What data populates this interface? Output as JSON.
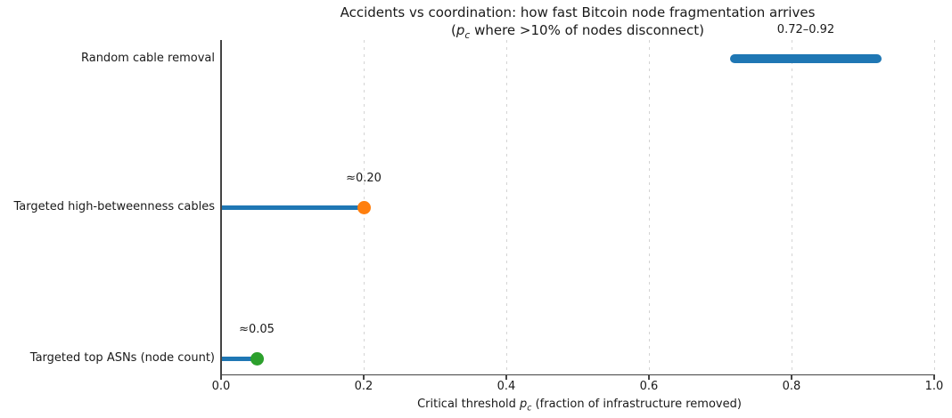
{
  "chart_data": {
    "type": "lollipop",
    "orientation": "horizontal",
    "title": "Accidents vs coordination: how fast Bitcoin node fragmentation arrives",
    "subtitle_parts": {
      "pre": "(",
      "var": "p",
      "sub": "c",
      "rest": " where >10% of nodes disconnect)"
    },
    "xlabel_parts": {
      "prefix": "Critical threshold ",
      "var": "p",
      "sub": "c",
      "suffix": " (fraction of infrastructure removed)"
    },
    "xlim": [
      0.0,
      1.0
    ],
    "xticks": [
      "0.0",
      "0.2",
      "0.4",
      "0.6",
      "0.8",
      "1.0"
    ],
    "xtick_values": [
      0.0,
      0.2,
      0.4,
      0.6,
      0.8,
      1.0
    ],
    "grid": {
      "axis": "x",
      "linestyle": "dashed",
      "color": "#d4d4d4"
    },
    "colors": {
      "stem_blue": "#1f77b4",
      "dot_orange": "#ff7f0e",
      "dot_green": "#2ca02c"
    },
    "rows": [
      {
        "category": "Random cable removal",
        "kind": "range",
        "low": 0.72,
        "high": 0.92,
        "annotation": "0.72–0.92",
        "color": "#1f77b4"
      },
      {
        "category": "Targeted high-betweenness cables",
        "kind": "lollipop",
        "value": 0.2,
        "annotation": "≈0.20",
        "stem_color": "#1f77b4",
        "dot_color": "#ff7f0e"
      },
      {
        "category": "Targeted top ASNs (node count)",
        "kind": "lollipop",
        "value": 0.05,
        "annotation": "≈0.05",
        "stem_color": "#1f77b4",
        "dot_color": "#2ca02c"
      }
    ]
  }
}
